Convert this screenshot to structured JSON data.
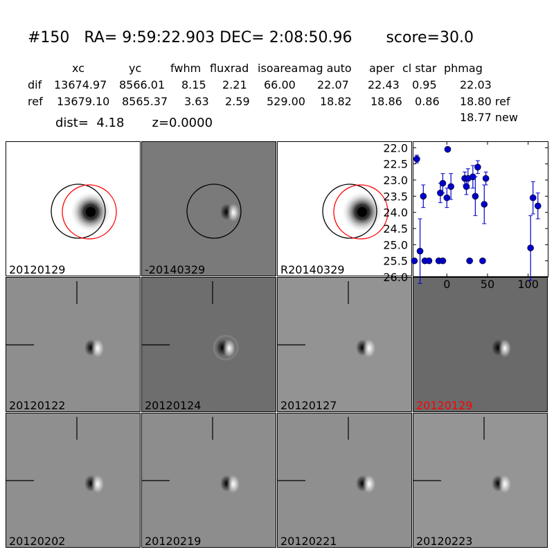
{
  "header": {
    "title": "#150   RA= 9:59:22.903 DEC= 2:08:50.96       score=30.0",
    "columns": [
      "xc",
      "yc",
      "fwhm",
      "fluxrad",
      "isoarea",
      "mag auto",
      "aper",
      "cl star",
      "phmag"
    ],
    "rows": [
      {
        "label": "dif",
        "values": [
          "13674.97",
          "8566.01",
          "8.15",
          "2.21",
          "66.00",
          "22.07",
          "22.43",
          "0.95",
          "22.03"
        ]
      },
      {
        "label": "ref",
        "values": [
          "13679.10",
          "8565.37",
          "3.63",
          "2.59",
          "529.00",
          "18.82",
          "18.86",
          "0.86",
          "18.80 ref"
        ]
      }
    ],
    "extra_phmag": "18.77 new",
    "dist_line": "dist=  4.18       z=0.0000"
  },
  "panels": [
    {
      "label": "20120129",
      "kind": "ref",
      "bg": "#ffffff",
      "circles": true
    },
    {
      "label": "-20140329",
      "kind": "dipole",
      "bg": "#7a7a7a",
      "circles": true
    },
    {
      "label": "R20140329",
      "kind": "ref",
      "bg": "#ffffff",
      "circles": true
    },
    {
      "label": "20120122",
      "kind": "dipole",
      "bg": "#8e8e8e",
      "crosshair": true
    },
    {
      "label": "20120124",
      "kind": "dipole-ring",
      "bg": "#6e6e6e",
      "crosshair": true
    },
    {
      "label": "20120127",
      "kind": "dipole",
      "bg": "#939393",
      "crosshair": true
    },
    {
      "label": "20120129",
      "kind": "dipole",
      "bg": "#6a6a6a",
      "crosshair": false,
      "label_color": "#ff0000"
    },
    {
      "label": "20120202",
      "kind": "dipole",
      "bg": "#8f8f8f",
      "crosshair": true
    },
    {
      "label": "20120219",
      "kind": "dipole",
      "bg": "#8d8d8d",
      "crosshair": true
    },
    {
      "label": "20120221",
      "kind": "dipole",
      "bg": "#8f8f8f",
      "crosshair": true
    },
    {
      "label": "20120223",
      "kind": "dipole",
      "bg": "#959595",
      "crosshair": true
    }
  ],
  "chart_data": {
    "type": "scatter",
    "title": "",
    "xlabel": "",
    "ylabel": "",
    "xlim": [
      -42,
      125
    ],
    "ylim": [
      26.0,
      21.8
    ],
    "y_inverted": true,
    "x_ticks": [
      0,
      50,
      100
    ],
    "x_tick_labels": [
      "0",
      "50",
      "100"
    ],
    "y_ticks": [
      22.0,
      22.5,
      23.0,
      23.5,
      24.0,
      24.5,
      25.0,
      25.5,
      26.0
    ],
    "y_tick_labels": [
      "22.0",
      "22.5",
      "23.0",
      "23.5",
      "24.0",
      "24.5",
      "25.0",
      "25.5",
      "26.0"
    ],
    "color": "#0000cc",
    "points": [
      {
        "x": -40,
        "y": 25.5,
        "err": 0
      },
      {
        "x": -37,
        "y": 22.35,
        "err": 0.12
      },
      {
        "x": -33,
        "y": 25.2,
        "err": 1.0
      },
      {
        "x": -29,
        "y": 23.5,
        "err": 0.35
      },
      {
        "x": -27,
        "y": 25.5,
        "err": 0
      },
      {
        "x": -22,
        "y": 25.5,
        "err": 0
      },
      {
        "x": -10,
        "y": 25.5,
        "err": 0
      },
      {
        "x": -8,
        "y": 23.4,
        "err": 0.3
      },
      {
        "x": -5,
        "y": 25.5,
        "err": 0
      },
      {
        "x": -5,
        "y": 23.1,
        "err": 0.3
      },
      {
        "x": 0,
        "y": 23.55,
        "err": 0.3
      },
      {
        "x": 1,
        "y": 22.05,
        "err": 0.06
      },
      {
        "x": 5,
        "y": 23.2,
        "err": 0.4
      },
      {
        "x": 22,
        "y": 22.95,
        "err": 0.2
      },
      {
        "x": 24,
        "y": 23.2,
        "err": 0.25
      },
      {
        "x": 26,
        "y": 22.95,
        "err": 0.3
      },
      {
        "x": 28,
        "y": 25.5,
        "err": 0
      },
      {
        "x": 32,
        "y": 22.9,
        "err": 0.35
      },
      {
        "x": 35,
        "y": 23.5,
        "err": 0.6
      },
      {
        "x": 38,
        "y": 22.6,
        "err": 0.2
      },
      {
        "x": 44,
        "y": 25.5,
        "err": 0
      },
      {
        "x": 46,
        "y": 23.75,
        "err": 0.6
      },
      {
        "x": 48,
        "y": 22.95,
        "err": 0.2
      },
      {
        "x": 103,
        "y": 25.1,
        "err": 1.0
      },
      {
        "x": 106,
        "y": 23.55,
        "err": 0.5
      },
      {
        "x": 112,
        "y": 23.8,
        "err": 0.4
      }
    ]
  }
}
